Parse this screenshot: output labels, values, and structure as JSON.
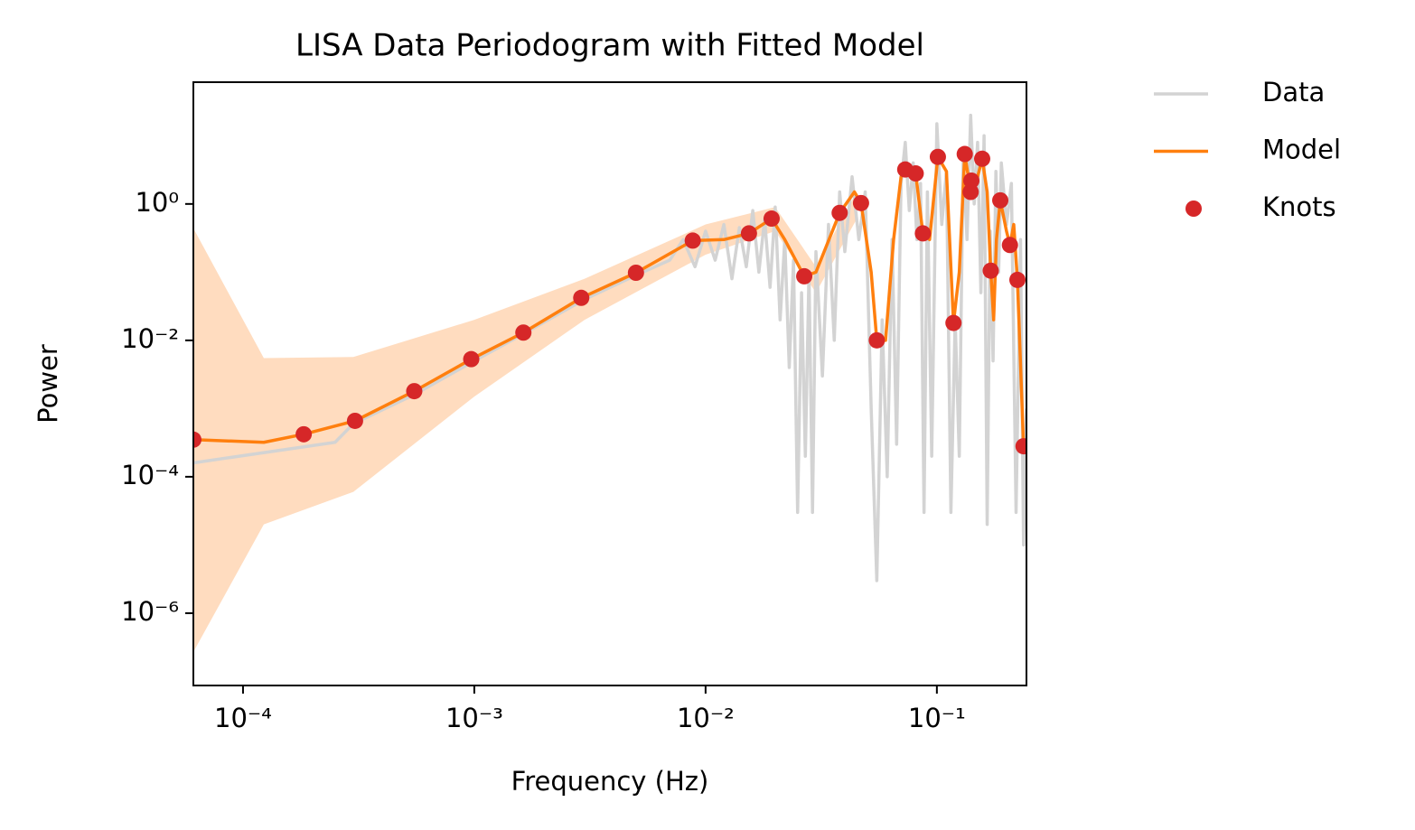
{
  "chart_data": {
    "type": "line",
    "title": "LISA Data Periodogram with Fitted Model",
    "x_label": "Frequency (Hz)",
    "y_label": "Power",
    "xscale": "log",
    "yscale": "log",
    "xlim": [
      6.1e-05,
      0.244
    ],
    "ylim": [
      8.7e-08,
      61
    ],
    "xticks": [
      {
        "value": 0.0001,
        "label": "10⁻⁴"
      },
      {
        "value": 0.001,
        "label": "10⁻³"
      },
      {
        "value": 0.01,
        "label": "10⁻²"
      },
      {
        "value": 0.1,
        "label": "10⁻¹"
      }
    ],
    "yticks": [
      {
        "value": 1e-06,
        "label": "10⁻⁶"
      },
      {
        "value": 0.0001,
        "label": "10⁻⁴"
      },
      {
        "value": 0.01,
        "label": "10⁻²"
      },
      {
        "value": 1,
        "label": "10⁰"
      }
    ],
    "legend": "outside-upper-right",
    "band": {
      "color": "#ffdcbf",
      "x": [
        6.1e-05,
        0.000123,
        0.0003,
        0.001,
        0.003,
        0.01,
        0.02,
        0.03,
        0.045
      ],
      "lower": [
        2.7e-07,
        2e-05,
        6e-05,
        0.0015,
        0.02,
        0.18,
        0.4,
        0.05,
        0.6
      ],
      "upper": [
        0.44,
        0.0055,
        0.0057,
        0.02,
        0.08,
        0.5,
        0.9,
        0.12,
        1.5
      ]
    },
    "series": [
      {
        "name": "Data",
        "color": "#d3d3d3",
        "style": "line",
        "x": [
          6.1e-05,
          0.00025,
          0.0003,
          0.00055,
          0.001,
          0.0016,
          0.003,
          0.005,
          0.007,
          0.008,
          0.009,
          0.01,
          0.011,
          0.012,
          0.013,
          0.014,
          0.015,
          0.016,
          0.017,
          0.018,
          0.019,
          0.02,
          0.021,
          0.022,
          0.023,
          0.024,
          0.025,
          0.026,
          0.027,
          0.028,
          0.029,
          0.03,
          0.032,
          0.034,
          0.036,
          0.038,
          0.04,
          0.043,
          0.046,
          0.049,
          0.052,
          0.055,
          0.058,
          0.061,
          0.064,
          0.067,
          0.07,
          0.073,
          0.076,
          0.079,
          0.082,
          0.085,
          0.088,
          0.091,
          0.095,
          0.1,
          0.105,
          0.11,
          0.115,
          0.12,
          0.125,
          0.13,
          0.135,
          0.14,
          0.145,
          0.15,
          0.155,
          0.16,
          0.165,
          0.17,
          0.175,
          0.18,
          0.185,
          0.19,
          0.2,
          0.21,
          0.22,
          0.23,
          0.237,
          0.244
        ],
        "values": [
          0.00016,
          0.00032,
          0.0006,
          0.0016,
          0.005,
          0.012,
          0.04,
          0.09,
          0.15,
          0.3,
          0.12,
          0.4,
          0.15,
          0.5,
          0.08,
          0.45,
          0.12,
          0.8,
          0.1,
          0.6,
          0.06,
          0.9,
          0.02,
          0.3,
          0.004,
          0.15,
          3e-05,
          0.05,
          0.0002,
          0.1,
          3e-05,
          0.2,
          0.003,
          0.5,
          0.01,
          1.5,
          0.2,
          2.5,
          0.3,
          1.5,
          0.001,
          3e-06,
          0.02,
          0.0001,
          0.3,
          0.0003,
          2,
          8,
          0.8,
          4,
          0.3,
          2,
          3e-05,
          1.5,
          0.0002,
          15,
          0.5,
          3,
          3e-05,
          0.02,
          0.0002,
          5,
          0.3,
          20,
          1,
          8,
          0.05,
          10,
          2e-05,
          0.4,
          0.005,
          3,
          0.1,
          4,
          0.5,
          2,
          3e-05,
          0.3,
          1e-05,
          0.001
        ]
      },
      {
        "name": "Model",
        "color": "#ff7f0e",
        "style": "line",
        "x": [
          6.1e-05,
          0.000123,
          0.000183,
          0.000305,
          0.00055,
          0.00097,
          0.00163,
          0.0029,
          0.005,
          0.0088,
          0.012,
          0.0154,
          0.0193,
          0.022,
          0.0267,
          0.03,
          0.038,
          0.044,
          0.047,
          0.052,
          0.055,
          0.06,
          0.065,
          0.07,
          0.073,
          0.081,
          0.087,
          0.093,
          0.101,
          0.11,
          0.118,
          0.125,
          0.132,
          0.14,
          0.141,
          0.15,
          0.157,
          0.165,
          0.171,
          0.176,
          0.181,
          0.188,
          0.2,
          0.207,
          0.215,
          0.223,
          0.237
        ],
        "values": [
          0.00035,
          0.00032,
          0.00042,
          0.00066,
          0.0018,
          0.0053,
          0.013,
          0.042,
          0.098,
          0.29,
          0.3,
          0.37,
          0.61,
          0.3,
          0.087,
          0.1,
          0.74,
          1.5,
          1.03,
          0.1,
          0.01,
          0.01,
          0.3,
          2.5,
          3.2,
          2.8,
          0.37,
          0.3,
          4.9,
          3,
          0.018,
          0.1,
          5.4,
          1.5,
          2.2,
          2.5,
          4.6,
          1.5,
          0.105,
          0.02,
          0.3,
          1.13,
          0.4,
          0.25,
          0.5,
          0.077,
          0.00028
        ]
      },
      {
        "name": "Knots",
        "color": "#d62728",
        "style": "markers",
        "x": [
          6.1e-05,
          0.000183,
          0.000305,
          0.00055,
          0.00097,
          0.00163,
          0.0029,
          0.005,
          0.0088,
          0.0154,
          0.0193,
          0.0267,
          0.038,
          0.047,
          0.055,
          0.073,
          0.081,
          0.087,
          0.101,
          0.118,
          0.132,
          0.14,
          0.141,
          0.157,
          0.171,
          0.188,
          0.207,
          0.223,
          0.237
        ],
        "values": [
          0.00035,
          0.00042,
          0.00066,
          0.0018,
          0.0053,
          0.013,
          0.042,
          0.098,
          0.29,
          0.37,
          0.61,
          0.087,
          0.74,
          1.03,
          0.01,
          3.2,
          2.8,
          0.37,
          4.9,
          0.018,
          5.4,
          1.5,
          2.2,
          4.6,
          0.105,
          1.13,
          0.25,
          0.077,
          0.00028
        ]
      }
    ]
  }
}
